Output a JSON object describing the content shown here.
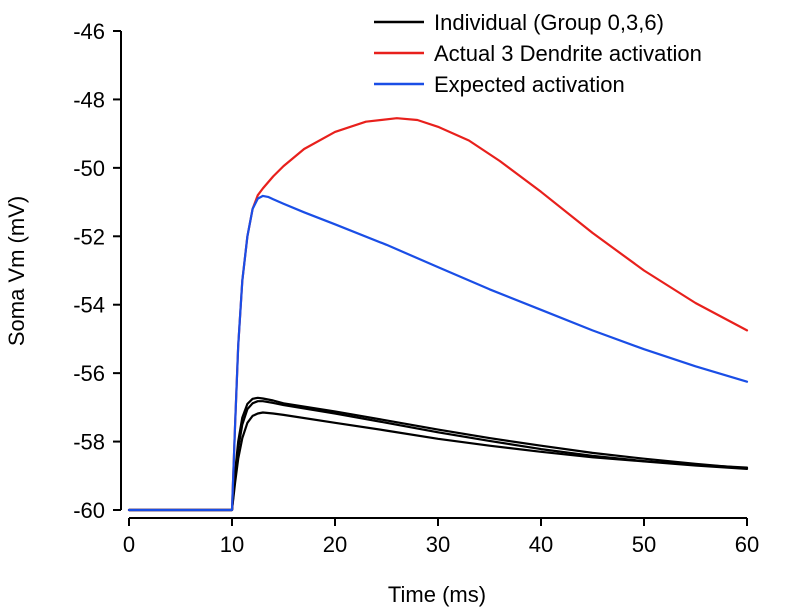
{
  "chart_data": {
    "type": "line",
    "title": "",
    "xlabel": "Time (ms)",
    "ylabel": "Soma Vm (mV)",
    "xlim": [
      0,
      60
    ],
    "ylim": [
      -60,
      -46
    ],
    "x_ticks": [
      0,
      10,
      20,
      30,
      40,
      50,
      60
    ],
    "y_ticks": [
      -60,
      -58,
      -56,
      -54,
      -52,
      -50,
      -48,
      -46
    ],
    "grid": false,
    "legend_position": "top-right",
    "series": [
      {
        "name": "Individual (Group 0,3,6)",
        "color": "#000000",
        "x": [
          0,
          10,
          10.3,
          10.6,
          11,
          11.5,
          12,
          12.5,
          13,
          14,
          15,
          20,
          25,
          30,
          35,
          40,
          45,
          50,
          55,
          60
        ],
        "y": [
          -60,
          -60,
          -59.2,
          -58.5,
          -57.9,
          -57.45,
          -57.25,
          -57.18,
          -57.15,
          -57.18,
          -57.22,
          -57.45,
          -57.68,
          -57.92,
          -58.12,
          -58.3,
          -58.46,
          -58.58,
          -58.7,
          -58.8
        ]
      },
      {
        "name": "",
        "color": "#000000",
        "x": [
          0,
          10,
          10.3,
          10.6,
          11,
          11.5,
          12,
          12.5,
          13,
          14,
          15,
          20,
          25,
          30,
          35,
          40,
          45,
          50,
          55,
          60
        ],
        "y": [
          -60,
          -60,
          -59.0,
          -58.2,
          -57.5,
          -57.05,
          -56.88,
          -56.82,
          -56.82,
          -56.87,
          -56.93,
          -57.18,
          -57.45,
          -57.73,
          -57.98,
          -58.22,
          -58.42,
          -58.57,
          -58.68,
          -58.76
        ]
      },
      {
        "name": "",
        "color": "#000000",
        "x": [
          0,
          10,
          10.3,
          10.6,
          11,
          11.5,
          12,
          12.5,
          13,
          14,
          15,
          20,
          25,
          30,
          35,
          40,
          45,
          50,
          55,
          60
        ],
        "y": [
          -60,
          -60,
          -58.9,
          -58.0,
          -57.3,
          -56.9,
          -56.75,
          -56.72,
          -56.74,
          -56.8,
          -56.88,
          -57.12,
          -57.38,
          -57.65,
          -57.9,
          -58.12,
          -58.33,
          -58.5,
          -58.65,
          -58.78
        ]
      },
      {
        "name": "Actual 3 Dendrite activation",
        "color": "#e8201c",
        "x": [
          0,
          10,
          10.3,
          10.6,
          11,
          11.5,
          12,
          12.5,
          13,
          14,
          15,
          17,
          20,
          23,
          26,
          28,
          30,
          33,
          36,
          40,
          45,
          50,
          55,
          60
        ],
        "y": [
          -60,
          -60,
          -57.5,
          -55.2,
          -53.3,
          -52.0,
          -51.2,
          -50.8,
          -50.6,
          -50.25,
          -49.95,
          -49.45,
          -48.95,
          -48.65,
          -48.55,
          -48.6,
          -48.8,
          -49.2,
          -49.8,
          -50.7,
          -51.9,
          -53.0,
          -53.95,
          -54.75
        ]
      },
      {
        "name": "Expected activation",
        "color": "#1a4ee6",
        "x": [
          0,
          10,
          10.3,
          10.6,
          11,
          11.5,
          12,
          12.5,
          13,
          13.5,
          14,
          15,
          17,
          20,
          25,
          30,
          35,
          40,
          45,
          50,
          55,
          60
        ],
        "y": [
          -60,
          -60,
          -57.5,
          -55.2,
          -53.3,
          -52.0,
          -51.2,
          -50.9,
          -50.82,
          -50.85,
          -50.92,
          -51.05,
          -51.3,
          -51.65,
          -52.25,
          -52.9,
          -53.55,
          -54.15,
          -54.75,
          -55.3,
          -55.8,
          -56.25
        ]
      }
    ]
  }
}
